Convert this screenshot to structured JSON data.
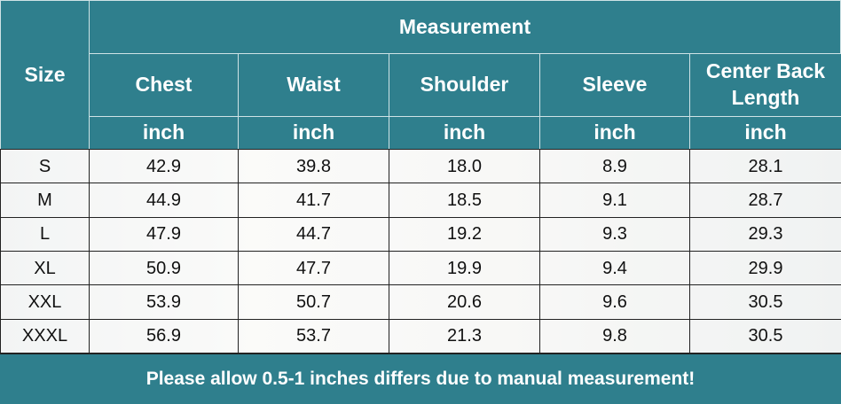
{
  "header": {
    "size_label": "Size",
    "group_label": "Measurement",
    "columns": [
      {
        "name": "Chest",
        "unit": "inch"
      },
      {
        "name": "Waist",
        "unit": "inch"
      },
      {
        "name": "Shoulder",
        "unit": "inch"
      },
      {
        "name": "Sleeve",
        "unit": "inch"
      },
      {
        "name": "Center Back Length",
        "unit": "inch"
      }
    ]
  },
  "table": {
    "rows": [
      [
        "S",
        "42.9",
        "39.8",
        "18.0",
        "8.9",
        "28.1"
      ],
      [
        "M",
        "44.9",
        "41.7",
        "18.5",
        "9.1",
        "28.7"
      ],
      [
        "L",
        "47.9",
        "44.7",
        "19.2",
        "9.3",
        "29.3"
      ],
      [
        "XL",
        "50.9",
        "47.7",
        "19.9",
        "9.4",
        "29.9"
      ],
      [
        "XXL",
        "53.9",
        "50.7",
        "20.6",
        "9.6",
        "30.5"
      ],
      [
        "XXXL",
        "56.9",
        "53.7",
        "21.3",
        "9.8",
        "30.5"
      ]
    ]
  },
  "footer": {
    "note": "Please allow 0.5-1 inches differs due to manual measurement!"
  }
}
